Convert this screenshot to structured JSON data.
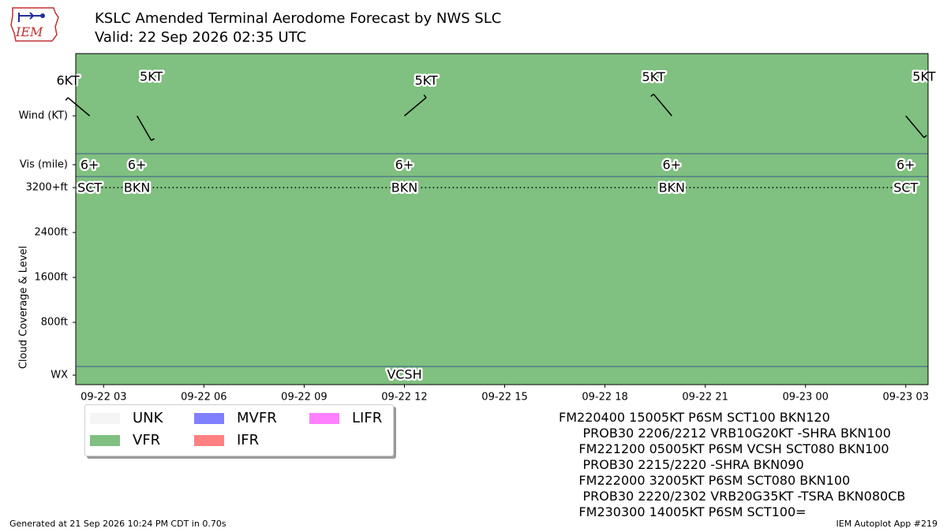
{
  "header": {
    "title_line_1": "KSLC Amended Terminal Aerodome Forecast by NWS SLC",
    "title_line_2": "Valid: 22 Sep 2026 02:35 UTC",
    "logo_text": "IEM"
  },
  "colors": {
    "UNK": "#f5f5f5",
    "VFR": "#80c080",
    "MVFR": "#8080ff",
    "IFR": "#ff8080",
    "LIFR": "#ff80ff",
    "separator": "#3a5a8a"
  },
  "chart_data": {
    "type": "timeline",
    "title": "KSLC Amended Terminal Aerodome Forecast by NWS SLC",
    "xlabel": "",
    "ylabel": "Cloud Coverage & Level",
    "x_range": [
      "2026-09-22 02:10",
      "2026-09-23 03:40"
    ],
    "x_ticks": [
      {
        "time": "2026-09-22 03:00",
        "label": "09-22 03"
      },
      {
        "time": "2026-09-22 06:00",
        "label": "09-22 06"
      },
      {
        "time": "2026-09-22 09:00",
        "label": "09-22 09"
      },
      {
        "time": "2026-09-22 12:00",
        "label": "09-22 12"
      },
      {
        "time": "2026-09-22 15:00",
        "label": "09-22 15"
      },
      {
        "time": "2026-09-22 18:00",
        "label": "09-22 18"
      },
      {
        "time": "2026-09-22 21:00",
        "label": "09-22 21"
      },
      {
        "time": "2026-09-23 00:00",
        "label": "09-23 00"
      },
      {
        "time": "2026-09-23 03:00",
        "label": "09-23 03"
      }
    ],
    "y_rows": [
      {
        "key": "wind",
        "label": "Wind (KT)"
      },
      {
        "key": "vis",
        "label": "Vis (mile)"
      }
    ],
    "cloud_axis": {
      "ticks": [
        "3200+ft",
        "2400ft",
        "1600ft",
        "800ft"
      ],
      "tick_values": [
        3200,
        2400,
        1600,
        800
      ],
      "wx_label": "WX"
    },
    "category_band": {
      "category": "VFR",
      "start": "2026-09-22 02:10",
      "end": "2026-09-23 03:40"
    },
    "forecasts": [
      {
        "time": "2026-09-22 02:35",
        "wind_dir": 310,
        "wind_label": "6KT",
        "wind_speed": 6,
        "vis": "6+",
        "cloud": "SCT",
        "cloud_level": 3200,
        "wx": ""
      },
      {
        "time": "2026-09-22 04:00",
        "wind_dir": 150,
        "wind_label": "5KT",
        "wind_speed": 5,
        "vis": "6+",
        "cloud": "BKN",
        "cloud_level": 3200,
        "wx": ""
      },
      {
        "time": "2026-09-22 12:00",
        "wind_dir": 50,
        "wind_label": "5KT",
        "wind_speed": 5,
        "vis": "6+",
        "cloud": "BKN",
        "cloud_level": 3200,
        "wx": "VCSH"
      },
      {
        "time": "2026-09-22 20:00",
        "wind_dir": 320,
        "wind_label": "5KT",
        "wind_speed": 5,
        "vis": "6+",
        "cloud": "BKN",
        "cloud_level": 3200,
        "wx": ""
      },
      {
        "time": "2026-09-23 03:00",
        "wind_dir": 140,
        "wind_label": "5KT",
        "wind_speed": 5,
        "vis": "6+",
        "cloud": "SCT",
        "cloud_level": 3200,
        "wx": ""
      }
    ]
  },
  "legend": {
    "items": [
      {
        "label": "UNK",
        "color": "#f5f5f5"
      },
      {
        "label": "VFR",
        "color": "#80c080"
      },
      {
        "label": "MVFR",
        "color": "#8080ff"
      },
      {
        "label": "IFR",
        "color": "#ff8080"
      },
      {
        "label": "LIFR",
        "color": "#ff80ff"
      }
    ]
  },
  "taf_text": {
    "lines": [
      "FM220400 15005KT P6SM SCT100 BKN120",
      "      PROB30 2206/2212 VRB10G20KT -SHRA BKN100",
      "     FM221200 05005KT P6SM VCSH SCT080 BKN100",
      "      PROB30 2215/2220 -SHRA BKN090",
      "     FM222000 32005KT P6SM SCT080 BKN100",
      "      PROB30 2220/2302 VRB20G35KT -TSRA BKN080CB",
      "     FM230300 14005KT P6SM SCT100="
    ]
  },
  "footer": {
    "left": "Generated at 21 Sep 2026 10:24 PM CDT in 0.70s",
    "right": "IEM Autoplot App #219"
  }
}
